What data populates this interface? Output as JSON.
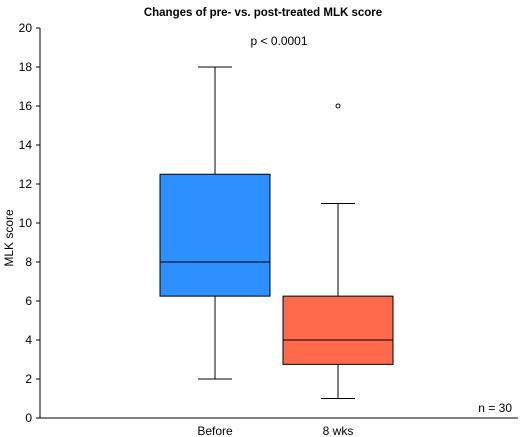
{
  "chart_data": {
    "type": "boxplot",
    "title": "Changes of pre- vs. post-treated MLK score",
    "ylabel": "MLK score",
    "xlabel": "",
    "ylim": [
      0,
      20
    ],
    "yticks": [
      0,
      2,
      4,
      6,
      8,
      10,
      12,
      14,
      16,
      18,
      20
    ],
    "grid": false,
    "categories": [
      "Before",
      "8 wks"
    ],
    "boxes": [
      {
        "category": "Before",
        "whisker_low": 2,
        "q1": 6.25,
        "median": 8,
        "q3": 12.5,
        "whisker_high": 18,
        "outliers": [],
        "color": "#2E8FFF"
      },
      {
        "category": "8 wks",
        "whisker_low": 1,
        "q1": 2.75,
        "median": 4,
        "q3": 6.25,
        "whisker_high": 11,
        "outliers": [
          16
        ],
        "color": "#FF6A4D"
      }
    ],
    "annotations": {
      "p_value": "p < 0.0001",
      "n": "n = 30"
    }
  }
}
